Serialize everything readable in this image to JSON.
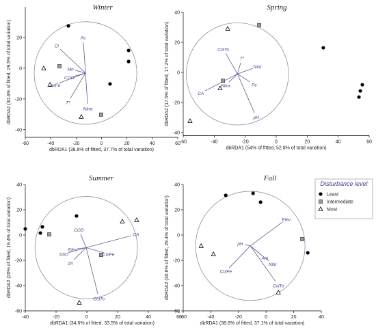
{
  "legend": {
    "title": "Disturbance level",
    "entries": [
      "Least",
      "Intermediate",
      "Most"
    ]
  },
  "chart_data": [
    {
      "type": "scatter",
      "title": "Winter",
      "x_label": "dbRDA1 (38.8% of fitted, 37.7% of total variation)",
      "y_label": "dbRDA2 (30.4% of fitted, 29.5% of total variation)",
      "xlim": [
        -60,
        60
      ],
      "xticks": [
        -60,
        -40,
        -20,
        0,
        20,
        40,
        60
      ],
      "ylim": [
        -45,
        40
      ],
      "yticks": [
        -40,
        -20,
        0,
        20
      ],
      "series": [
        {
          "color": "#000000",
          "x": [
            -26.1,
            21.3,
            21.3,
            6.7
          ],
          "values": [
            27.6,
            11.6,
            4.4,
            -10.2
          ]
        },
        {
          "color": "#999999",
          "x": [
            -33.1,
            -0.3
          ],
          "values": [
            1.3,
            -30.2
          ]
        },
        {
          "color": "#ffffff",
          "x": [
            -45.5,
            -40.6,
            -15.9
          ],
          "values": [
            0,
            -10.7,
            -31.6
          ]
        }
      ],
      "vectors": {
        "origin": [
          -12.6,
          -3.1
        ],
        "radius": 40.4,
        "labels": [
          "Cl",
          "As",
          "Mn",
          "COD",
          "ColFe",
          "T*",
          "Nitra"
        ],
        "x": [
          -32.6,
          -14.3,
          -20.7,
          -21.8,
          -33.6,
          -24.5,
          -11
        ],
        "values": [
          12.4,
          16.9,
          -1.3,
          -5.3,
          -9.8,
          -19.6,
          -23.1
        ]
      }
    },
    {
      "type": "scatter",
      "title": "Spring",
      "x_label": "dbRDA1 (54% of fitted, 52.8% of total variation)",
      "y_label": "dbRDA2 (17.5% of fitted, 17.2% of total variation)",
      "xlim": [
        -60,
        60
      ],
      "xticks": [
        -60,
        -40,
        -20,
        0,
        20,
        40,
        60
      ],
      "ylim": [
        -42,
        40
      ],
      "yticks": [
        -40,
        -20,
        0,
        20,
        40
      ],
      "series": [
        {
          "color": "#000000",
          "x": [
            30.4,
            55.6,
            54.3,
            53.4
          ],
          "values": [
            16.4,
            -8.2,
            -12.3,
            -16.4
          ]
        },
        {
          "color": "#999999",
          "x": [
            -11,
            -34.4
          ],
          "values": [
            31.4,
            -5.5
          ]
        },
        {
          "color": "#ffffff",
          "x": [
            -31.3,
            -36.2,
            -55.6
          ],
          "values": [
            29.1,
            -10.5,
            -32.3
          ]
        }
      ],
      "vectors": {
        "origin": [
          -25,
          -1
        ],
        "radius": 33,
        "labels": [
          "ColTo",
          "T*",
          "Nitri",
          "Nitra",
          "CA",
          "Fe",
          "pH"
        ],
        "x": [
          -32.6,
          -22.9,
          -15,
          -30.4,
          -45.9,
          -16.8,
          -14.1
        ],
        "values": [
          12.7,
          6.4,
          2.7,
          -6.4,
          -12.3,
          -6.4,
          -26.8
        ]
      }
    },
    {
      "type": "scatter",
      "title": "Summer",
      "x_label": "dbRDA1 (34.6% of fitted, 33.5% of total variation)",
      "y_label": "dbRDA2 (20% of fitted, 19.4% of total variation)",
      "xlim": [
        -40,
        60
      ],
      "xticks": [
        -40,
        -20,
        0,
        20,
        40,
        60
      ],
      "ylim": [
        -60,
        40
      ],
      "yticks": [
        -60,
        -40,
        -20,
        0,
        20,
        40
      ],
      "series": [
        {
          "color": "#000000",
          "x": [
            -40,
            -28.9,
            -30.2,
            -6.7
          ],
          "values": [
            4.9,
            6.5,
            1.6,
            15.1
          ]
        },
        {
          "color": "#999999",
          "x": [
            -24.4,
            9.3
          ],
          "values": [
            0.5,
            -15.7
          ]
        },
        {
          "color": "#ffffff",
          "x": [
            23.1,
            32.4,
            -4.9
          ],
          "values": [
            10.8,
            11.9,
            -53.5
          ]
        }
      ],
      "vectors": {
        "origin": [
          -0.4,
          -10
        ],
        "radius": 33.3,
        "labels": [
          "COD",
          "Elev",
          "SSO",
          "Zn",
          "ColFe",
          "CA",
          "ColTo"
        ],
        "x": [
          -4,
          -6.2,
          -12,
          -8.4,
          11.1,
          28.9,
          7.1
        ],
        "values": [
          0.5,
          -10.8,
          -14,
          -19.5,
          -14,
          -0.5,
          -46.5
        ]
      }
    },
    {
      "type": "scatter",
      "title": "Fall",
      "x_label": "dbRDA1 (38.6% of fitted, 37.1% of total variation)",
      "y_label": "dbRDA2 (30.6% of fitted, 29.4% of total variation)",
      "xlim": [
        -60,
        40
      ],
      "xticks": [
        -60,
        -40,
        -20,
        0,
        20,
        40
      ],
      "ylim": [
        -60,
        40
      ],
      "yticks": [
        -60,
        -40,
        -20,
        0,
        20,
        40
      ],
      "series": [
        {
          "color": "#000000",
          "x": [
            -29.2,
            -9.4,
            -4,
            30.2
          ],
          "values": [
            31.4,
            33,
            26,
            -14.1
          ]
        },
        {
          "color": "#999999",
          "x": [
            26.2
          ],
          "values": [
            -3.2
          ]
        },
        {
          "color": "#ffffff",
          "x": [
            -47,
            -38.1,
            8.9
          ],
          "values": [
            -8.6,
            -15.1,
            -45.4
          ]
        }
      ],
      "vectors": {
        "origin": [
          -11.4,
          -8.6
        ],
        "radius": 39.6,
        "labels": [
          "Elev",
          "pH",
          "Am",
          "Nitri",
          "ColFe",
          "ColTo"
        ],
        "x": [
          11.9,
          -15.3,
          -3.5,
          2,
          -26.7,
          6.9
        ],
        "values": [
          10.3,
          -7.6,
          -15.7,
          -20.5,
          -25.9,
          -36.8
        ]
      }
    }
  ]
}
